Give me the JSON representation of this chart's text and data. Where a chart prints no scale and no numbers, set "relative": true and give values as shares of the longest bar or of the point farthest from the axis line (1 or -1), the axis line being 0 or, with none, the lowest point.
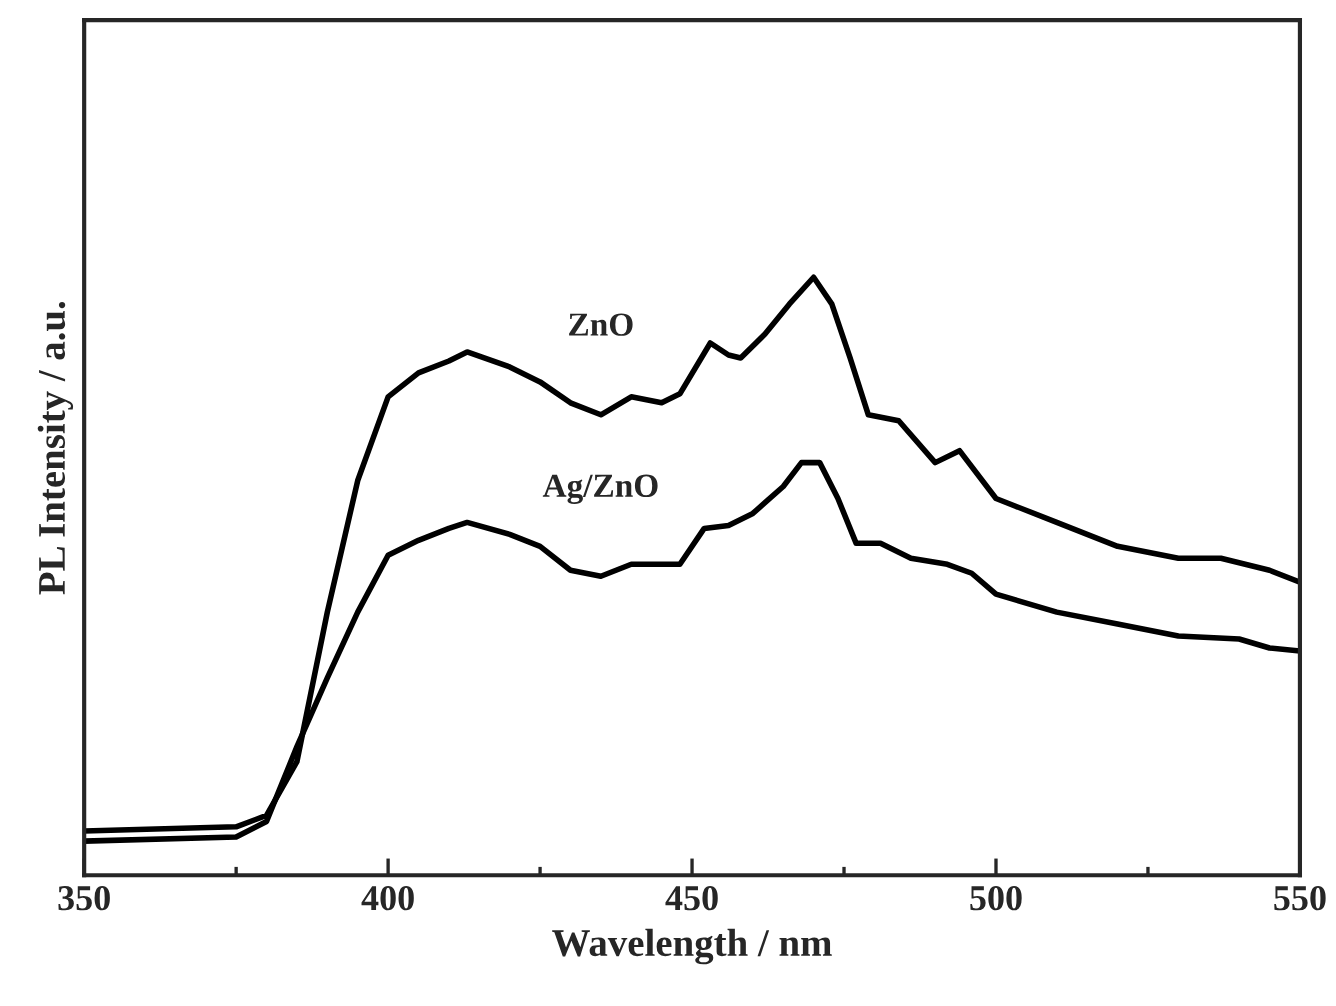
{
  "chart_data": {
    "type": "line",
    "xlabel": "Wavelength / nm",
    "ylabel": "PL Intensity / a.u.",
    "relative": true,
    "xlim": [
      350,
      550
    ],
    "xticks": [
      350,
      400,
      450,
      500,
      550
    ],
    "grid": false,
    "legend": false,
    "marker": "none",
    "line_style": "solid",
    "series": [
      {
        "name": "ZnO",
        "color": "#000000",
        "x": [
          350,
          375,
          380,
          385,
          390,
          395,
          400,
          405,
          410,
          413,
          420,
          425,
          430,
          435,
          440,
          445,
          448,
          453,
          456,
          458,
          462,
          466,
          470,
          473,
          476,
          479,
          484,
          490,
          494,
          500,
          510,
          520,
          530,
          537,
          545,
          550
        ],
        "values": [
          0.074,
          0.081,
          0.1,
          0.19,
          0.44,
          0.66,
          0.8,
          0.84,
          0.86,
          0.875,
          0.85,
          0.825,
          0.79,
          0.77,
          0.8,
          0.79,
          0.805,
          0.89,
          0.87,
          0.865,
          0.905,
          0.955,
          1.0,
          0.955,
          0.865,
          0.77,
          0.76,
          0.69,
          0.71,
          0.63,
          0.59,
          0.55,
          0.53,
          0.53,
          0.51,
          0.49
        ]
      },
      {
        "name": "Ag/ZnO",
        "color": "#000000",
        "x": [
          350,
          375,
          380,
          385,
          390,
          395,
          400,
          405,
          410,
          413,
          420,
          425,
          430,
          435,
          440,
          445,
          448,
          452,
          456,
          460,
          465,
          468,
          471,
          474,
          477,
          481,
          486,
          492,
          496,
          500,
          510,
          520,
          530,
          540,
          545,
          550
        ],
        "values": [
          0.057,
          0.064,
          0.09,
          0.215,
          0.33,
          0.44,
          0.535,
          0.56,
          0.58,
          0.59,
          0.57,
          0.55,
          0.51,
          0.5,
          0.52,
          0.52,
          0.52,
          0.58,
          0.585,
          0.605,
          0.65,
          0.69,
          0.69,
          0.63,
          0.555,
          0.555,
          0.53,
          0.52,
          0.505,
          0.47,
          0.44,
          0.42,
          0.4,
          0.395,
          0.38,
          0.375
        ]
      }
    ]
  }
}
